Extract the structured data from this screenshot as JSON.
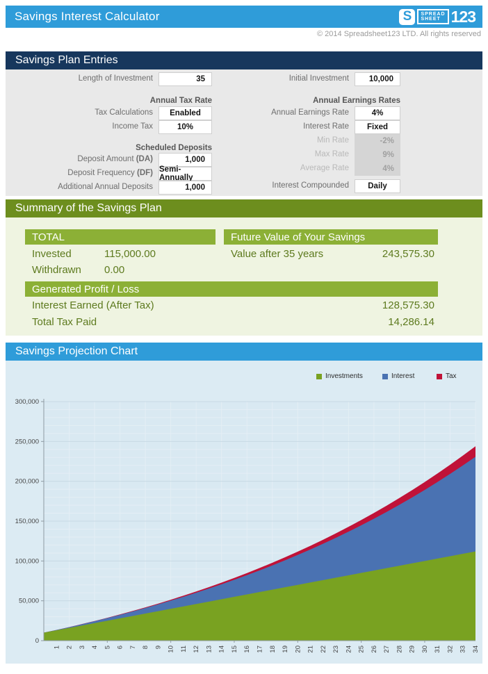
{
  "header": {
    "title": "Savings Interest Calculator",
    "logo": {
      "s": "S",
      "line1": "SPREAD",
      "line2": "SHEET",
      "number": "123"
    },
    "copyright": "© 2014 Spreadsheet123 LTD. All rights reserved"
  },
  "entries": {
    "section_title": "Savings Plan Entries",
    "length_label": "Length of Investment",
    "length_value": "35",
    "initial_label": "Initial Investment",
    "initial_value": "10,000",
    "tax_group_title": "Annual Tax Rate",
    "tax_calc_label": "Tax Calculations",
    "tax_calc_value": "Enabled",
    "income_tax_label": "Income Tax",
    "income_tax_value": "10%",
    "earnings_group_title": "Annual Earnings Rates",
    "earnings_rate_label": "Annual Earnings Rate",
    "earnings_rate_value": "4%",
    "interest_rate_label": "Interest Rate",
    "interest_rate_value": "Fixed",
    "min_rate_label": "Min Rate",
    "min_rate_value": "-2%",
    "max_rate_label": "Max Rate",
    "max_rate_value": "9%",
    "avg_rate_label": "Average Rate",
    "avg_rate_value": "4%",
    "deposits_group_title": "Scheduled Deposits",
    "deposit_amount_label": "Deposit Amount ",
    "deposit_amount_bold": "(DA)",
    "deposit_amount_value": "1,000",
    "deposit_freq_label": "Deposit Frequency ",
    "deposit_freq_bold": "(DF)",
    "deposit_freq_value": "Semi-Annually",
    "additional_label": "Additional Annual Deposits",
    "additional_value": "1,000",
    "compounded_label": "Interest Compounded",
    "compounded_value": "Daily"
  },
  "summary": {
    "section_title": "Summary of the Savings Plan",
    "total_title": "TOTAL",
    "invested_label": "Invested",
    "invested_value": "115,000.00",
    "withdrawn_label": "Withdrawn",
    "withdrawn_value": "0.00",
    "future_title": "Future Value of Your Savings",
    "future_label": "Value after 35 years",
    "future_value": "243,575.30",
    "profit_title": "Generated Profit / Loss",
    "interest_earned_label": "Interest Earned (After Tax)",
    "interest_earned_value": "128,575.30",
    "tax_paid_label": "Total Tax Paid",
    "tax_paid_value": "14,286.14"
  },
  "chart_section": {
    "section_title": "Savings Projection Chart"
  },
  "chart_data": {
    "type": "area",
    "stacked": true,
    "title": "",
    "legend_position": "top-right",
    "grid": true,
    "ylim": [
      0,
      300000
    ],
    "y_major_step": 50000,
    "y_minor_step": 10000,
    "y_tick_labels": [
      "0",
      "50,000",
      "100,000",
      "150,000",
      "200,000",
      "250,000",
      "300,000"
    ],
    "categories": [
      1,
      2,
      3,
      4,
      5,
      6,
      7,
      8,
      9,
      10,
      11,
      12,
      13,
      14,
      15,
      16,
      17,
      18,
      19,
      20,
      21,
      22,
      23,
      24,
      25,
      26,
      27,
      28,
      29,
      30,
      31,
      32,
      33,
      34
    ],
    "start_point": {
      "investments": 10000,
      "interest": 0,
      "tax": 0
    },
    "series": [
      {
        "name": "Investments",
        "color": "#79a221",
        "values": [
          13000,
          16000,
          19000,
          22000,
          25000,
          28000,
          31000,
          34000,
          37000,
          40000,
          43000,
          46000,
          49000,
          52000,
          55000,
          58000,
          61000,
          64000,
          67000,
          70000,
          73000,
          76000,
          79000,
          82000,
          85000,
          88000,
          91000,
          94000,
          97000,
          100000,
          103000,
          106000,
          109000,
          112000
        ]
      },
      {
        "name": "Interest",
        "color": "#4a72b2",
        "values": [
          414,
          951,
          1615,
          2411,
          3344,
          4418,
          5639,
          7012,
          8542,
          10236,
          12098,
          14136,
          16355,
          18762,
          21363,
          24166,
          27178,
          30406,
          33859,
          37544,
          41470,
          45645,
          50078,
          54779,
          59757,
          65022,
          70585,
          76456,
          82646,
          89167,
          96031,
          103250,
          110837,
          118805
        ]
      },
      {
        "name": "Tax",
        "color": "#c01238",
        "values": [
          46,
          106,
          179,
          268,
          372,
          491,
          627,
          779,
          949,
          1137,
          1344,
          1571,
          1817,
          2085,
          2374,
          2685,
          3020,
          3378,
          3762,
          4172,
          4608,
          5072,
          5564,
          6087,
          6640,
          7225,
          7843,
          8495,
          9183,
          9907,
          10670,
          11472,
          12315,
          13201
        ]
      }
    ]
  }
}
